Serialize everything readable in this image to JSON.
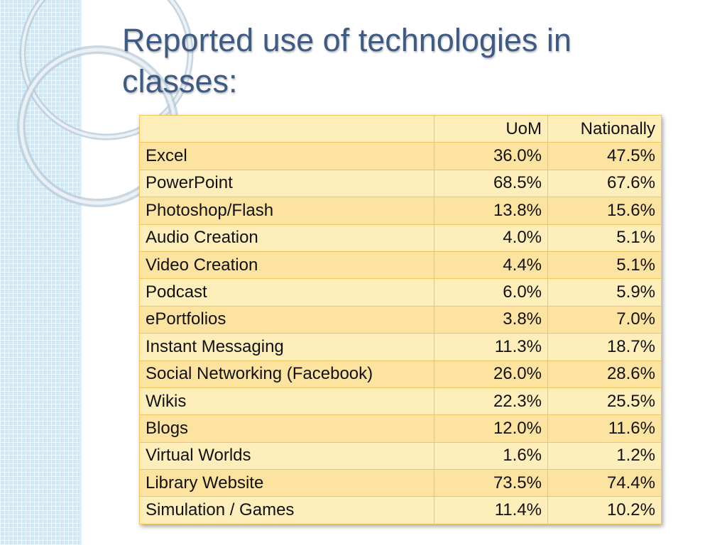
{
  "slide": {
    "title": "Reported use of technologies in classes:"
  },
  "table": {
    "headers": [
      "",
      "UoM",
      "Nationally"
    ],
    "rows": [
      [
        "Excel",
        "36.0%",
        "47.5%"
      ],
      [
        "PowerPoint",
        "68.5%",
        "67.6%"
      ],
      [
        "Photoshop/Flash",
        "13.8%",
        "15.6%"
      ],
      [
        "Audio Creation",
        "4.0%",
        "5.1%"
      ],
      [
        "Video Creation",
        "4.4%",
        "5.1%"
      ],
      [
        "Podcast",
        "6.0%",
        "5.9%"
      ],
      [
        "ePortfolios",
        "3.8%",
        "7.0%"
      ],
      [
        "Instant Messaging",
        "11.3%",
        "18.7%"
      ],
      [
        "Social Networking (Facebook)",
        "26.0%",
        "28.6%"
      ],
      [
        "Wikis",
        "22.3%",
        "25.5%"
      ],
      [
        "Blogs",
        "12.0%",
        "11.6%"
      ],
      [
        "Virtual Worlds",
        "1.6%",
        "1.2%"
      ],
      [
        "Library Website",
        "73.5%",
        "74.4%"
      ],
      [
        "Simulation / Games",
        "11.4%",
        "10.2%"
      ]
    ]
  },
  "colors": {
    "title": "#3e5b84",
    "strip": "#cfe8f5",
    "cell_fill": "#fde8a8",
    "cell_border": "#f3c55a"
  }
}
